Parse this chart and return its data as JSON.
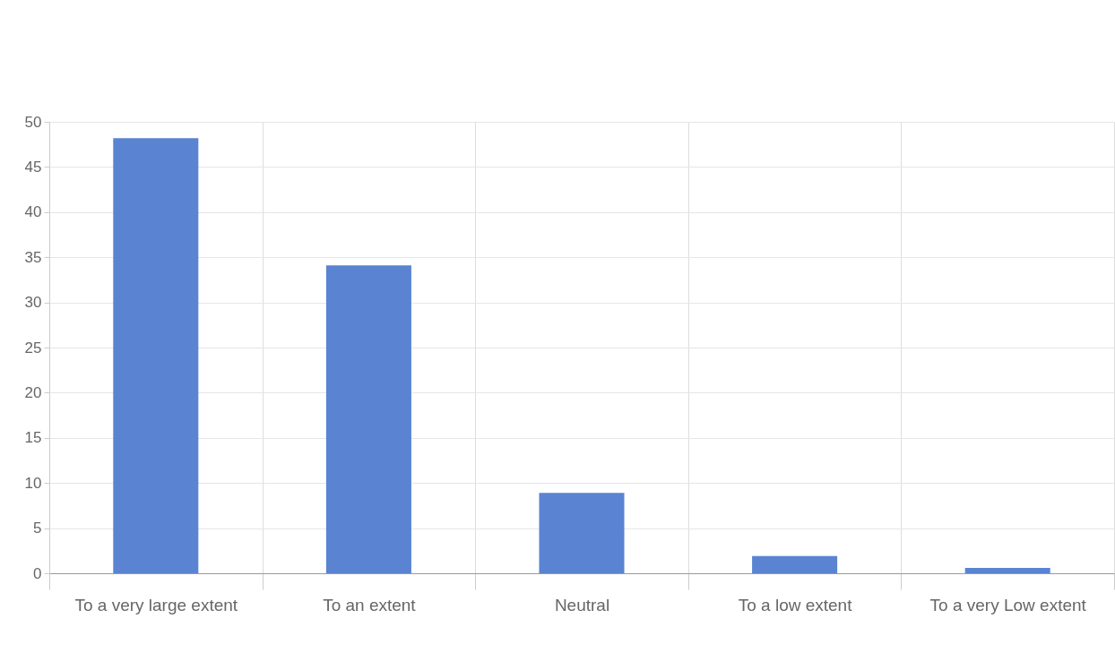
{
  "chart_data": {
    "type": "bar",
    "categories": [
      "To a very large extent",
      "To an extent",
      "Neutral",
      "To a low extent",
      "To a very Low extent"
    ],
    "values": [
      48.2,
      34.1,
      8.9,
      1.9,
      0.6
    ],
    "color": "#5a84d2",
    "ylim": [
      0,
      50
    ],
    "yticks": [
      0,
      5,
      10,
      15,
      20,
      25,
      30,
      35,
      40,
      45,
      50
    ],
    "grid": true
  }
}
